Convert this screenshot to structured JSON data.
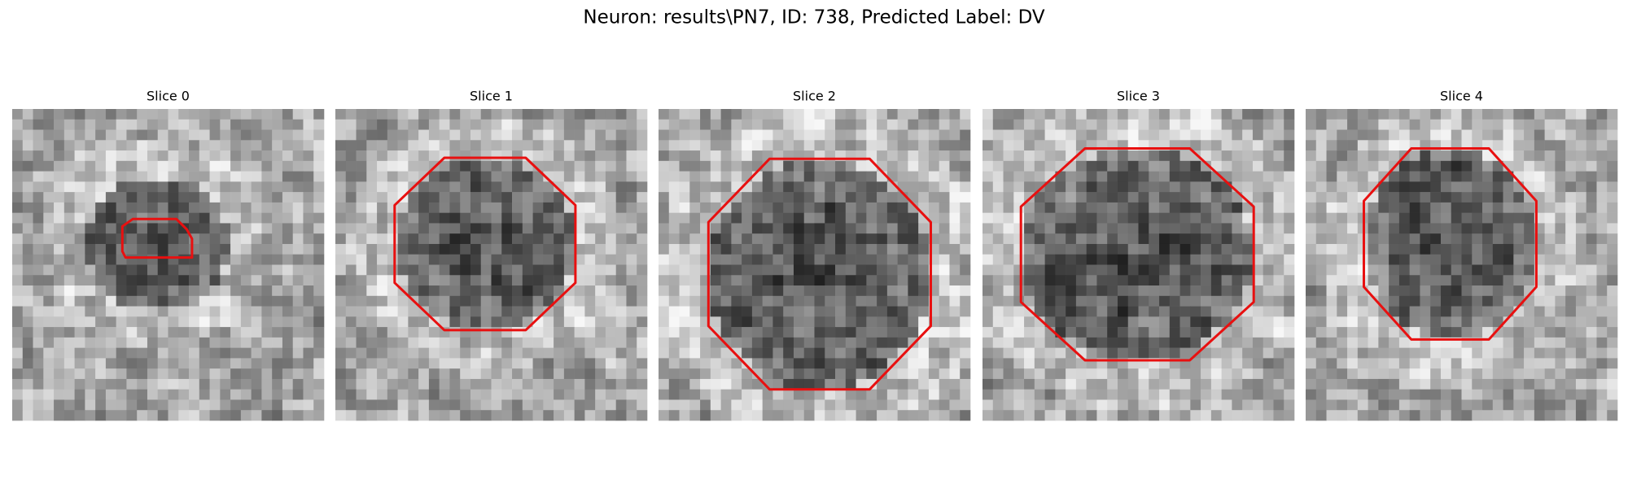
{
  "figure": {
    "title": "Neuron: results\\PN7, ID: 738, Predicted Label: DV",
    "panels": [
      {
        "title": "Slice 0"
      },
      {
        "title": "Slice 1"
      },
      {
        "title": "Slice 2"
      },
      {
        "title": "Slice 3"
      },
      {
        "title": "Slice 4"
      }
    ]
  }
}
